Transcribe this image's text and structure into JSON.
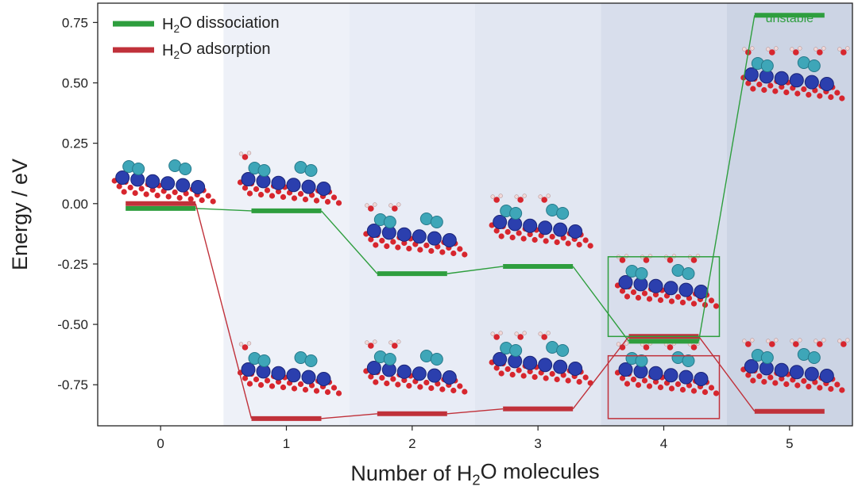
{
  "chart_data": {
    "type": "line",
    "xlabel_parts": [
      "Number of H",
      "2",
      "O molecules"
    ],
    "ylabel": "Energy / eV",
    "x": [
      0,
      1,
      2,
      3,
      4,
      5
    ],
    "xlim": [
      -0.5,
      5.5
    ],
    "ylim": [
      -0.92,
      0.83
    ],
    "yticks": [
      0.75,
      0.5,
      0.25,
      0.0,
      -0.25,
      -0.5,
      -0.75
    ],
    "ytick_labels": [
      "0.75",
      "0.50",
      "0.25",
      "0.00",
      "-0.25",
      "-0.50",
      "-0.75"
    ],
    "xtick_labels": [
      "0",
      "1",
      "2",
      "3",
      "4",
      "5"
    ],
    "series": [
      {
        "label_parts": [
          "H",
          "2",
          "O dissociation"
        ],
        "color": "#2e9e3e",
        "values": [
          -0.02,
          -0.03,
          -0.29,
          -0.26,
          -0.57,
          0.78
        ]
      },
      {
        "label_parts": [
          "H",
          "2",
          "O adsorption"
        ],
        "color": "#c0313a",
        "values": [
          0.0,
          -0.89,
          -0.87,
          -0.85,
          -0.55,
          -0.86
        ]
      }
    ],
    "legend_position": "top-left",
    "annotations": [
      {
        "text": "unstable",
        "x": 5,
        "color": "#2e9e3e"
      }
    ],
    "background_bands": [
      "#ffffff",
      "#eef1f8",
      "#e8ecf6",
      "#e2e7f2",
      "#d8deec",
      "#ccd4e4"
    ],
    "highlight_boxes": [
      {
        "x": 4,
        "series": "dissociation",
        "color": "#2e9e3e"
      },
      {
        "x": 4,
        "series": "adsorption",
        "color": "#c0313a"
      }
    ]
  }
}
